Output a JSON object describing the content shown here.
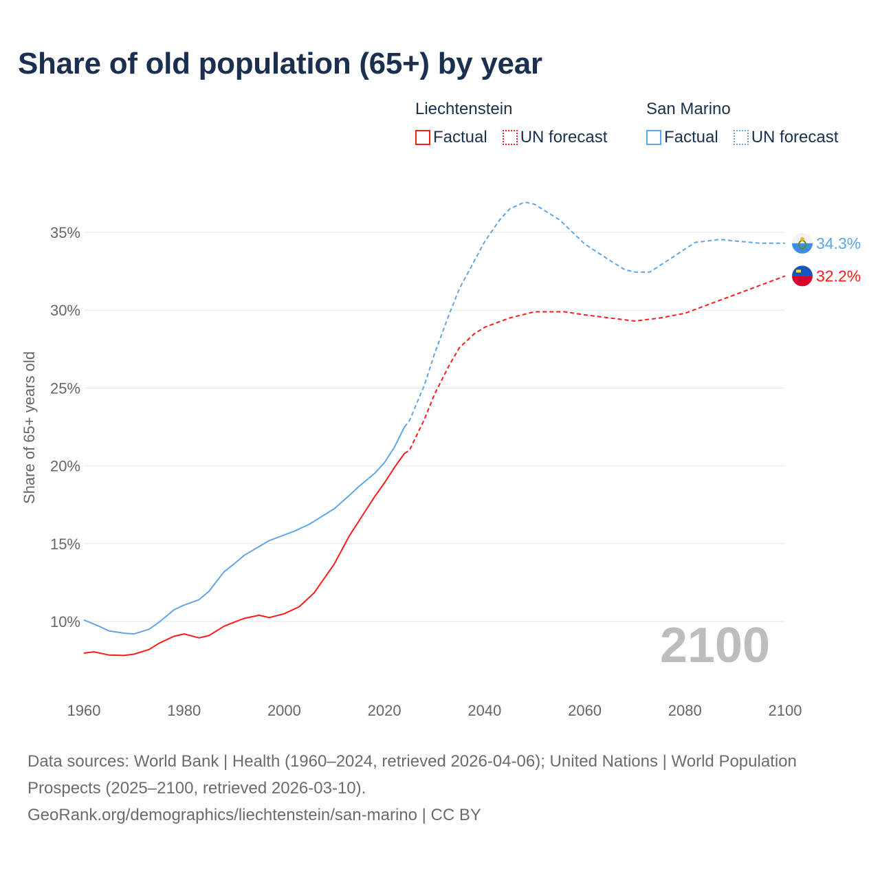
{
  "title": "Share of old population (65+) by year",
  "legend": {
    "groups": [
      {
        "name": "Liechtenstein",
        "factual": "Factual",
        "forecast": "UN forecast",
        "color": "#ff1a1a"
      },
      {
        "name": "San Marino",
        "factual": "Factual",
        "forecast": "UN forecast",
        "color": "#5ea5ea"
      }
    ]
  },
  "year_watermark": "2100",
  "source": {
    "line1": "Data sources: World Bank | Health (1960–2024, retrieved 2026-04-06); United Nations | World Population Prospects (2025–2100, retrieved 2026-03-10).",
    "line2": "GeoRank.org/demographics/liechtenstein/san-marino | CC BY"
  },
  "chart_data": {
    "type": "line",
    "title": "Share of old population (65+) by year",
    "xlabel": "",
    "ylabel": "Share of 65+ years old",
    "xlim": [
      1960,
      2100
    ],
    "ylim": [
      8,
      37.5
    ],
    "x_ticks": [
      "1960",
      "1980",
      "2000",
      "2020",
      "2040",
      "2060",
      "2080",
      "2100"
    ],
    "y_ticks": [
      "10%",
      "15%",
      "20%",
      "25%",
      "30%",
      "35%"
    ],
    "grid": true,
    "legend_position": "top-right",
    "series": [
      {
        "name": "Liechtenstein",
        "color": "#ff1a1a",
        "end_label": "32.2%",
        "factual": [
          [
            1960,
            7.97
          ],
          [
            1962,
            8.05
          ],
          [
            1965,
            7.85
          ],
          [
            1968,
            7.82
          ],
          [
            1970,
            7.9
          ],
          [
            1973,
            8.2
          ],
          [
            1975,
            8.6
          ],
          [
            1978,
            9.05
          ],
          [
            1980,
            9.2
          ],
          [
            1983,
            8.95
          ],
          [
            1985,
            9.1
          ],
          [
            1988,
            9.7
          ],
          [
            1990,
            9.95
          ],
          [
            1992,
            10.2
          ],
          [
            1995,
            10.4
          ],
          [
            1997,
            10.25
          ],
          [
            2000,
            10.5
          ],
          [
            2003,
            10.95
          ],
          [
            2006,
            11.85
          ],
          [
            2010,
            13.7
          ],
          [
            2013,
            15.5
          ],
          [
            2016,
            17
          ],
          [
            2018,
            18
          ],
          [
            2020,
            18.9
          ],
          [
            2022,
            19.9
          ],
          [
            2024,
            20.8
          ]
        ],
        "forecast": [
          [
            2024,
            20.8
          ],
          [
            2025,
            21
          ],
          [
            2028,
            23
          ],
          [
            2030,
            24.6
          ],
          [
            2033,
            26.5
          ],
          [
            2035,
            27.6
          ],
          [
            2038,
            28.5
          ],
          [
            2040,
            28.9
          ],
          [
            2045,
            29.5
          ],
          [
            2050,
            29.9
          ],
          [
            2056,
            29.9
          ],
          [
            2060,
            29.7
          ],
          [
            2065,
            29.5
          ],
          [
            2070,
            29.3
          ],
          [
            2075,
            29.5
          ],
          [
            2080,
            29.8
          ],
          [
            2085,
            30.4
          ],
          [
            2090,
            31
          ],
          [
            2095,
            31.6
          ],
          [
            2100,
            32.2
          ]
        ]
      },
      {
        "name": "San Marino",
        "color": "#5ea5ea",
        "end_label": "34.3%",
        "factual": [
          [
            1960,
            10.1
          ],
          [
            1963,
            9.7
          ],
          [
            1965,
            9.4
          ],
          [
            1968,
            9.25
          ],
          [
            1970,
            9.2
          ],
          [
            1973,
            9.5
          ],
          [
            1975,
            9.95
          ],
          [
            1978,
            10.75
          ],
          [
            1980,
            11.05
          ],
          [
            1983,
            11.4
          ],
          [
            1985,
            11.95
          ],
          [
            1988,
            13.2
          ],
          [
            1990,
            13.7
          ],
          [
            1992,
            14.25
          ],
          [
            1997,
            15.2
          ],
          [
            2002,
            15.8
          ],
          [
            2005,
            16.25
          ],
          [
            2010,
            17.25
          ],
          [
            2013,
            18.1
          ],
          [
            2015,
            18.7
          ],
          [
            2018,
            19.5
          ],
          [
            2020,
            20.2
          ],
          [
            2022,
            21.2
          ],
          [
            2024,
            22.5
          ]
        ],
        "forecast": [
          [
            2024,
            22.5
          ],
          [
            2025,
            22.9
          ],
          [
            2028,
            25.2
          ],
          [
            2030,
            27.2
          ],
          [
            2033,
            29.8
          ],
          [
            2035,
            31.4
          ],
          [
            2038,
            33.2
          ],
          [
            2040,
            34.4
          ],
          [
            2043,
            35.8
          ],
          [
            2045,
            36.5
          ],
          [
            2048,
            36.95
          ],
          [
            2050,
            36.8
          ],
          [
            2055,
            35.8
          ],
          [
            2060,
            34.25
          ],
          [
            2065,
            33.2
          ],
          [
            2068,
            32.6
          ],
          [
            2070,
            32.45
          ],
          [
            2073,
            32.45
          ],
          [
            2078,
            33.5
          ],
          [
            2082,
            34.35
          ],
          [
            2087,
            34.55
          ],
          [
            2090,
            34.45
          ],
          [
            2095,
            34.3
          ],
          [
            2100,
            34.3
          ]
        ]
      }
    ]
  }
}
